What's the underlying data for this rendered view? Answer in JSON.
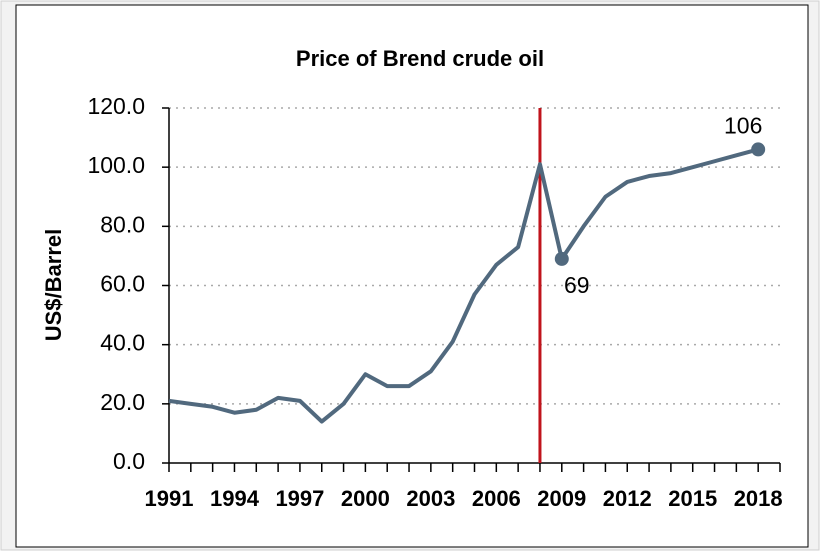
{
  "chart_data": {
    "type": "line",
    "title": "Price of Brend crude oil",
    "y_label": "US$/Barrel",
    "x": [
      1991,
      1992,
      1993,
      1994,
      1995,
      1996,
      1997,
      1998,
      1999,
      2000,
      2001,
      2002,
      2003,
      2004,
      2005,
      2006,
      2007,
      2008,
      2009,
      2010,
      2011,
      2012,
      2013,
      2014,
      2015,
      2016,
      2017,
      2018
    ],
    "series": [
      {
        "name": "Brent",
        "color": "#51697e",
        "values": [
          21,
          20,
          19,
          17,
          18,
          22,
          21,
          14,
          20,
          30,
          26,
          26,
          31,
          41,
          57,
          67,
          73,
          101,
          69,
          80,
          90,
          95,
          97,
          98,
          100,
          102,
          104,
          106
        ]
      }
    ],
    "xlim": [
      1991,
      2019
    ],
    "xticks": [
      1991,
      1994,
      1997,
      2000,
      2003,
      2006,
      2009,
      2012,
      2015,
      2018
    ],
    "ylim": [
      0,
      120
    ],
    "yticks": [
      {
        "value": 0,
        "label": "0.0"
      },
      {
        "value": 20,
        "label": "20.0"
      },
      {
        "value": 40,
        "label": "40.0"
      },
      {
        "value": 60,
        "label": "60.0"
      },
      {
        "value": 80,
        "label": "80.0"
      },
      {
        "value": 100,
        "label": "100.0"
      },
      {
        "value": 120,
        "label": "120.0"
      }
    ],
    "grid": true,
    "vline": {
      "x": 2008,
      "color": "#c0141c"
    },
    "labeled_points": [
      {
        "x": 2009,
        "y": 69
      },
      {
        "x": 2018,
        "y": 106
      }
    ]
  }
}
